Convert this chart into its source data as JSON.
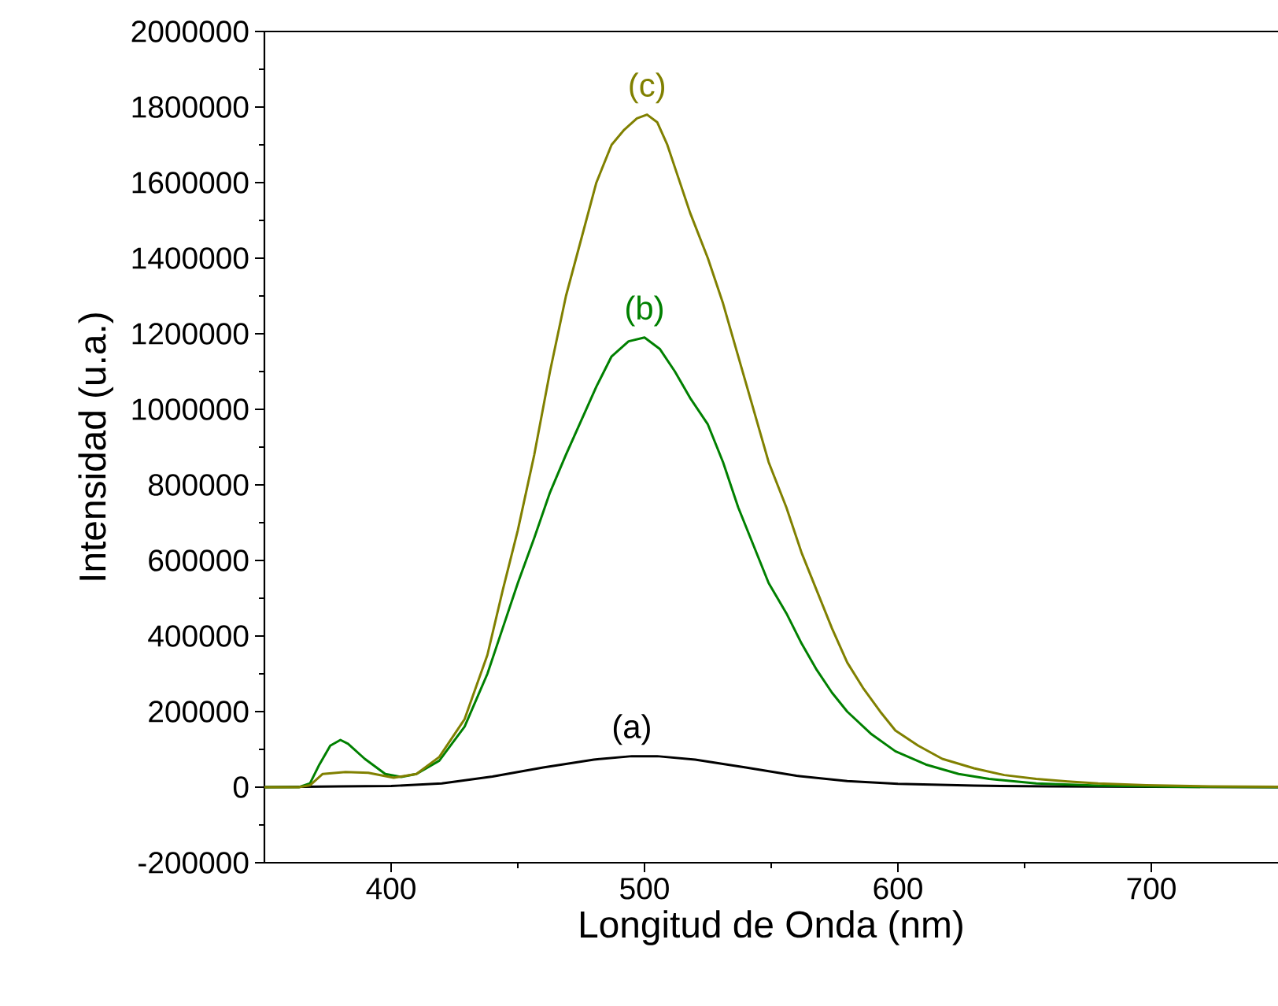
{
  "chart_data": {
    "type": "line",
    "xlabel": "Longitud de Onda (nm)",
    "ylabel": "Intensidad (u.a.)",
    "xlim": [
      350,
      750
    ],
    "xticks": [
      400,
      500,
      600,
      700
    ],
    "ylim": [
      -200000,
      2000000
    ],
    "yticks": [
      -200000,
      0,
      200000,
      400000,
      600000,
      800000,
      1000000,
      1200000,
      1400000,
      1600000,
      1800000,
      2000000
    ],
    "grid": false,
    "marker": "none",
    "line_style": "solid",
    "series": [
      {
        "color": "#000000",
        "x": [
          350,
          380,
          400,
          420,
          440,
          460,
          480,
          495,
          505,
          520,
          540,
          560,
          580,
          600,
          630,
          660,
          700,
          750
        ],
        "values": [
          0,
          2000,
          3000,
          10000,
          28000,
          52000,
          73000,
          82000,
          82000,
          73000,
          52000,
          30000,
          16000,
          9000,
          4000,
          2000,
          1000,
          0
        ]
      },
      {
        "color": "#008000",
        "x": [
          350,
          363.6,
          368,
          371.7,
          376,
          380,
          383,
          389.6,
          397.7,
          404,
          410,
          419,
          429,
          438,
          444,
          450,
          456.5,
          462.7,
          469,
          475,
          481,
          487,
          493.7,
          500,
          506,
          512,
          518,
          525,
          531,
          537,
          543,
          549,
          556,
          562,
          568,
          574,
          580,
          589.6,
          599,
          611,
          624,
          636,
          654.6,
          679,
          710,
          750
        ],
        "values": [
          0,
          0,
          10000,
          60000,
          110000,
          125000,
          115000,
          75000,
          35000,
          27000,
          35000,
          70000,
          160000,
          300000,
          420000,
          540000,
          660000,
          780000,
          880000,
          970000,
          1060000,
          1140000,
          1180000,
          1190000,
          1160000,
          1100000,
          1030000,
          960000,
          860000,
          740000,
          640000,
          540000,
          460000,
          380000,
          310000,
          250000,
          200000,
          140000,
          95000,
          60000,
          35000,
          22000,
          10000,
          4000,
          1000,
          0
        ]
      },
      {
        "color": "#808000",
        "x": [
          350,
          363.6,
          368,
          373,
          382,
          391,
          401,
          410,
          419,
          429,
          438,
          444,
          450,
          456.5,
          462.7,
          469,
          475,
          481,
          487,
          492,
          497,
          501,
          505,
          509,
          513,
          518,
          525,
          531,
          537,
          543,
          549,
          556,
          562,
          568,
          574,
          580,
          586.5,
          593,
          599,
          608,
          617.5,
          630,
          642,
          654.6,
          667,
          679,
          698,
          723,
          750
        ],
        "values": [
          0,
          0,
          5000,
          35000,
          40000,
          38000,
          25000,
          35000,
          80000,
          180000,
          350000,
          520000,
          680000,
          880000,
          1100000,
          1300000,
          1450000,
          1600000,
          1700000,
          1740000,
          1770000,
          1780000,
          1760000,
          1700000,
          1620000,
          1520000,
          1400000,
          1280000,
          1140000,
          1000000,
          860000,
          740000,
          620000,
          520000,
          420000,
          330000,
          260000,
          200000,
          150000,
          110000,
          75000,
          50000,
          32000,
          22000,
          15000,
          10000,
          5000,
          2000,
          1000
        ]
      }
    ],
    "annotations": [
      "(a)",
      "(b)",
      "(c)"
    ]
  }
}
